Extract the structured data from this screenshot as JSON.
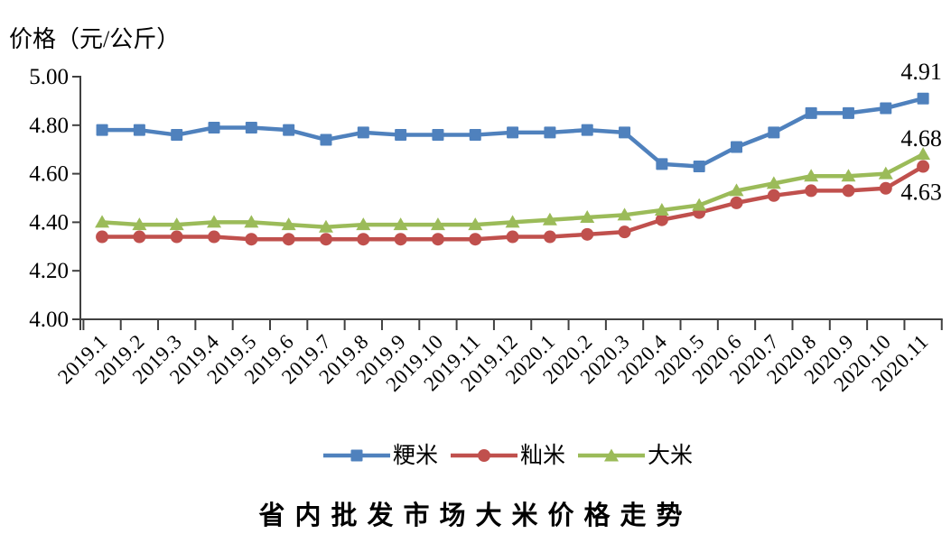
{
  "chart_data": {
    "type": "line",
    "title": "省内批发市场大米价格走势",
    "ylabel": "价格（元/公斤）",
    "xlabel": "",
    "ylim": [
      4.0,
      5.0
    ],
    "ytick_labels": [
      "4.00",
      "4.20",
      "4.40",
      "4.60",
      "4.80",
      "5.00"
    ],
    "grid": false,
    "legend_position": "bottom",
    "axis_color": "#404040",
    "text_color": "#000000",
    "categories": [
      "2019.1",
      "2019.2",
      "2019.3",
      "2019.4",
      "2019.5",
      "2019.6",
      "2019.7",
      "2019.8",
      "2019.9",
      "2019.10",
      "2019.11",
      "2019.12",
      "2020.1",
      "2020.2",
      "2020.3",
      "2020.4",
      "2020.5",
      "2020.6",
      "2020.7",
      "2020.8",
      "2020.9",
      "2020.10",
      "2020.11"
    ],
    "series": [
      {
        "name": "粳米",
        "color": "#4F81BD",
        "marker": "square",
        "values": [
          4.78,
          4.78,
          4.76,
          4.79,
          4.79,
          4.78,
          4.74,
          4.77,
          4.76,
          4.76,
          4.76,
          4.77,
          4.77,
          4.78,
          4.77,
          4.64,
          4.63,
          4.71,
          4.77,
          4.85,
          4.85,
          4.87,
          4.91
        ]
      },
      {
        "name": "籼米",
        "color": "#C0504D",
        "marker": "circle",
        "values": [
          4.34,
          4.34,
          4.34,
          4.34,
          4.33,
          4.33,
          4.33,
          4.33,
          4.33,
          4.33,
          4.33,
          4.34,
          4.34,
          4.35,
          4.36,
          4.41,
          4.44,
          4.48,
          4.51,
          4.53,
          4.53,
          4.54,
          4.63
        ]
      },
      {
        "name": "大米",
        "color": "#9BBB59",
        "marker": "triangle",
        "values": [
          4.4,
          4.39,
          4.39,
          4.4,
          4.4,
          4.39,
          4.38,
          4.39,
          4.39,
          4.39,
          4.39,
          4.4,
          4.41,
          4.42,
          4.43,
          4.45,
          4.47,
          4.53,
          4.56,
          4.59,
          4.59,
          4.6,
          4.68
        ]
      }
    ],
    "end_labels": [
      {
        "series": "粳米",
        "text": "4.91"
      },
      {
        "series": "大米",
        "text": "4.68"
      },
      {
        "series": "籼米",
        "text": "4.63"
      }
    ]
  }
}
